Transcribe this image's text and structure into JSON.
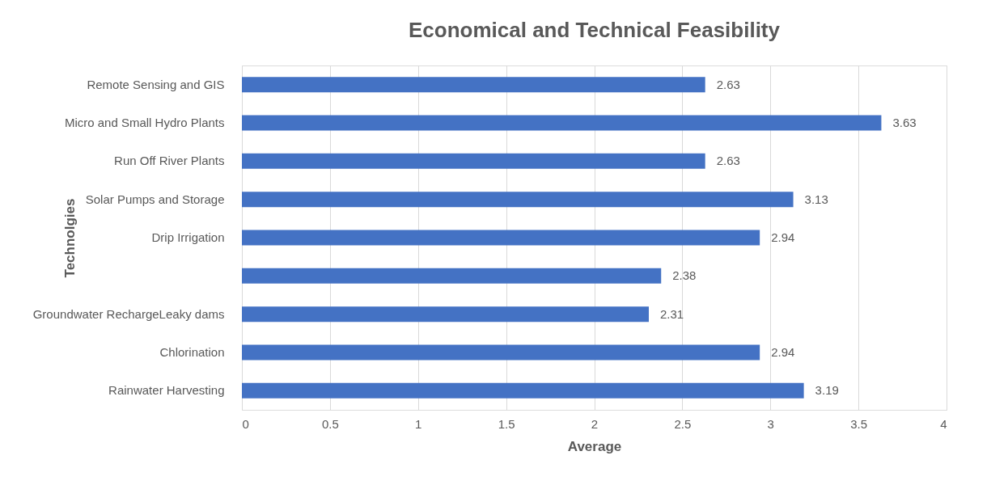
{
  "chart_data": {
    "type": "bar",
    "orientation": "horizontal",
    "title": "Economical and Technical Feasibility",
    "xlabel": "Average",
    "ylabel": "Technolgies",
    "categories": [
      "Remote Sensing and GIS",
      "Micro and Small Hydro Plants",
      "Run Off River Plants",
      "Solar Pumps and Storage",
      "Drip Irrigation",
      null,
      "Groundwater RechargeLeaky dams",
      "Chlorination",
      "Rainwater Harvesting"
    ],
    "values": [
      2.63,
      3.63,
      2.63,
      3.13,
      2.94,
      2.38,
      2.31,
      2.94,
      3.19
    ],
    "color": "#4472c4",
    "xlim": [
      0,
      4
    ],
    "xticks": [
      0,
      0.5,
      1,
      1.5,
      2,
      2.5,
      3,
      3.5,
      4
    ],
    "grid": "x",
    "data_labels": true
  }
}
